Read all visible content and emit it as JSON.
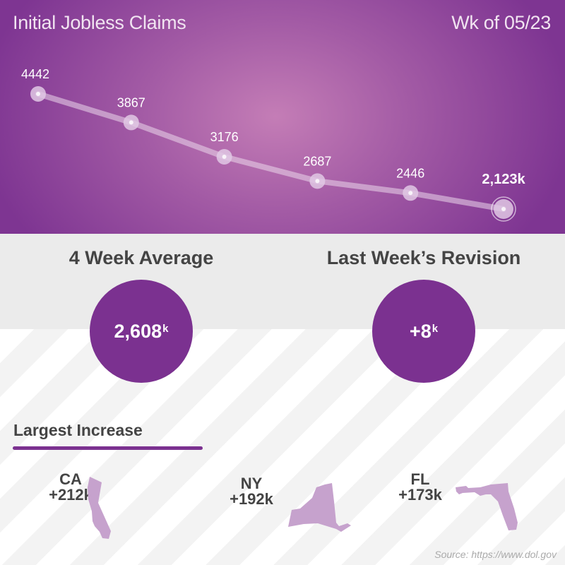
{
  "header": {
    "title": "Initial Jobless Claims",
    "week": "Wk of 05/23"
  },
  "chart_data": {
    "type": "line",
    "values": [
      4442,
      3867,
      3176,
      2687,
      2446,
      2123
    ],
    "labels": [
      "4442",
      "3867",
      "3176",
      "2687",
      "2446",
      "2,123k"
    ],
    "grid": false
  },
  "stats": {
    "avg_title": "4 Week Average",
    "avg_value": "2,608",
    "avg_unit": "k",
    "rev_title": "Last Week’s Revision",
    "rev_value": "+8",
    "rev_unit": "k"
  },
  "largest": {
    "title": "Largest Increase",
    "states": [
      {
        "code": "CA",
        "value": "+212k"
      },
      {
        "code": "NY",
        "value": "+192k"
      },
      {
        "code": "FL",
        "value": "+173k"
      }
    ]
  },
  "colors": {
    "accent": "#7b3190",
    "state": "#c6a2cd"
  },
  "source": "Source: https://www.dol.gov"
}
